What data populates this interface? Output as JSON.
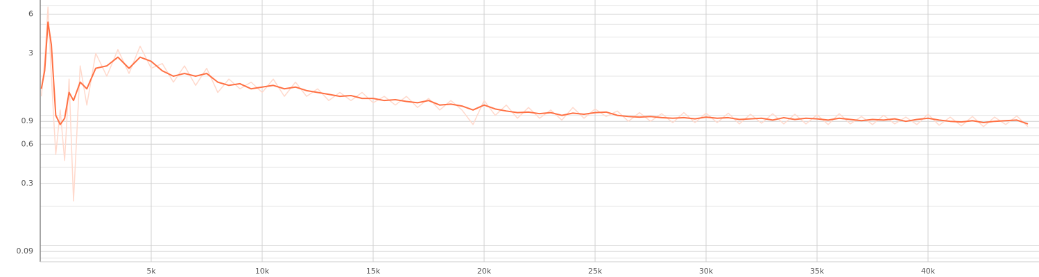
{
  "chart_data": {
    "type": "line",
    "log_y": true,
    "grid": true,
    "xlim": [
      0,
      45000
    ],
    "ylim": [
      0.075,
      7.7
    ],
    "xticks": [
      {
        "value": 5000,
        "label": "5k"
      },
      {
        "value": 10000,
        "label": "10k"
      },
      {
        "value": 15000,
        "label": "15k"
      },
      {
        "value": 20000,
        "label": "20k"
      },
      {
        "value": 25000,
        "label": "25k"
      },
      {
        "value": 30000,
        "label": "30k"
      },
      {
        "value": 35000,
        "label": "35k"
      },
      {
        "value": 40000,
        "label": "40k"
      }
    ],
    "yticks": [
      6,
      3,
      0.9,
      0.6,
      0.3,
      0.09
    ],
    "y_minor_ticks": [
      0.08,
      0.1,
      0.2,
      0.4,
      0.5,
      0.7,
      0.8,
      1,
      2,
      4,
      5,
      7
    ],
    "x": [
      50,
      200,
      350,
      500,
      700,
      900,
      1100,
      1300,
      1500,
      1800,
      2100,
      2500,
      3000,
      3500,
      4000,
      4500,
      5000,
      5500,
      6000,
      6500,
      7000,
      7500,
      8000,
      8500,
      9000,
      9500,
      10000,
      10500,
      11000,
      11500,
      12000,
      12500,
      13000,
      13500,
      14000,
      14500,
      15000,
      15500,
      16000,
      16500,
      17000,
      17500,
      18000,
      18500,
      19000,
      19500,
      20000,
      20500,
      21000,
      21500,
      22000,
      22500,
      23000,
      23500,
      24000,
      24500,
      25000,
      25500,
      26000,
      26500,
      27000,
      27500,
      28000,
      28500,
      29000,
      29500,
      30000,
      30500,
      31000,
      31500,
      32000,
      32500,
      33000,
      33500,
      34000,
      34500,
      35000,
      35500,
      36000,
      36500,
      37000,
      37500,
      38000,
      38500,
      39000,
      39500,
      40000,
      40500,
      41000,
      41500,
      42000,
      42500,
      43000,
      43500,
      44000,
      44500
    ],
    "series": [
      {
        "color": "#ffd9cc",
        "values": [
          1.4,
          2.6,
          6.8,
          2.0,
          0.5,
          1.1,
          0.45,
          1.9,
          0.22,
          2.4,
          1.2,
          3.0,
          2.0,
          3.2,
          2.1,
          3.4,
          2.3,
          2.5,
          1.8,
          2.4,
          1.7,
          2.3,
          1.5,
          1.9,
          1.6,
          1.8,
          1.5,
          1.9,
          1.4,
          1.8,
          1.4,
          1.6,
          1.3,
          1.5,
          1.3,
          1.5,
          1.25,
          1.4,
          1.2,
          1.4,
          1.15,
          1.35,
          1.1,
          1.3,
          1.1,
          0.85,
          1.3,
          1.0,
          1.2,
          0.95,
          1.15,
          0.95,
          1.1,
          0.92,
          1.15,
          0.95,
          1.12,
          0.98,
          1.08,
          0.9,
          1.05,
          0.9,
          1.03,
          0.88,
          1.05,
          0.88,
          1.04,
          0.88,
          1.04,
          0.86,
          1.02,
          0.87,
          1.03,
          0.86,
          1.02,
          0.86,
          1.01,
          0.85,
          1.03,
          0.86,
          0.98,
          0.85,
          1.0,
          0.86,
          0.97,
          0.85,
          1.02,
          0.84,
          0.97,
          0.83,
          0.98,
          0.82,
          0.97,
          0.85,
          0.99,
          0.82
        ]
      },
      {
        "color": "#ff7043",
        "values": [
          1.6,
          2.2,
          5.2,
          3.5,
          1.0,
          0.85,
          0.95,
          1.5,
          1.3,
          1.8,
          1.6,
          2.3,
          2.4,
          2.8,
          2.3,
          2.8,
          2.6,
          2.2,
          2.0,
          2.1,
          2.0,
          2.1,
          1.8,
          1.7,
          1.75,
          1.6,
          1.65,
          1.7,
          1.6,
          1.65,
          1.55,
          1.5,
          1.45,
          1.4,
          1.42,
          1.35,
          1.35,
          1.3,
          1.32,
          1.28,
          1.25,
          1.3,
          1.2,
          1.22,
          1.18,
          1.1,
          1.2,
          1.12,
          1.08,
          1.05,
          1.06,
          1.03,
          1.05,
          1.0,
          1.04,
          1.02,
          1.05,
          1.06,
          1.0,
          0.98,
          0.97,
          0.98,
          0.96,
          0.95,
          0.96,
          0.94,
          0.97,
          0.95,
          0.96,
          0.93,
          0.94,
          0.95,
          0.92,
          0.96,
          0.93,
          0.95,
          0.94,
          0.92,
          0.95,
          0.93,
          0.91,
          0.93,
          0.92,
          0.94,
          0.9,
          0.93,
          0.95,
          0.92,
          0.9,
          0.89,
          0.91,
          0.88,
          0.9,
          0.91,
          0.92,
          0.86
        ]
      }
    ]
  }
}
